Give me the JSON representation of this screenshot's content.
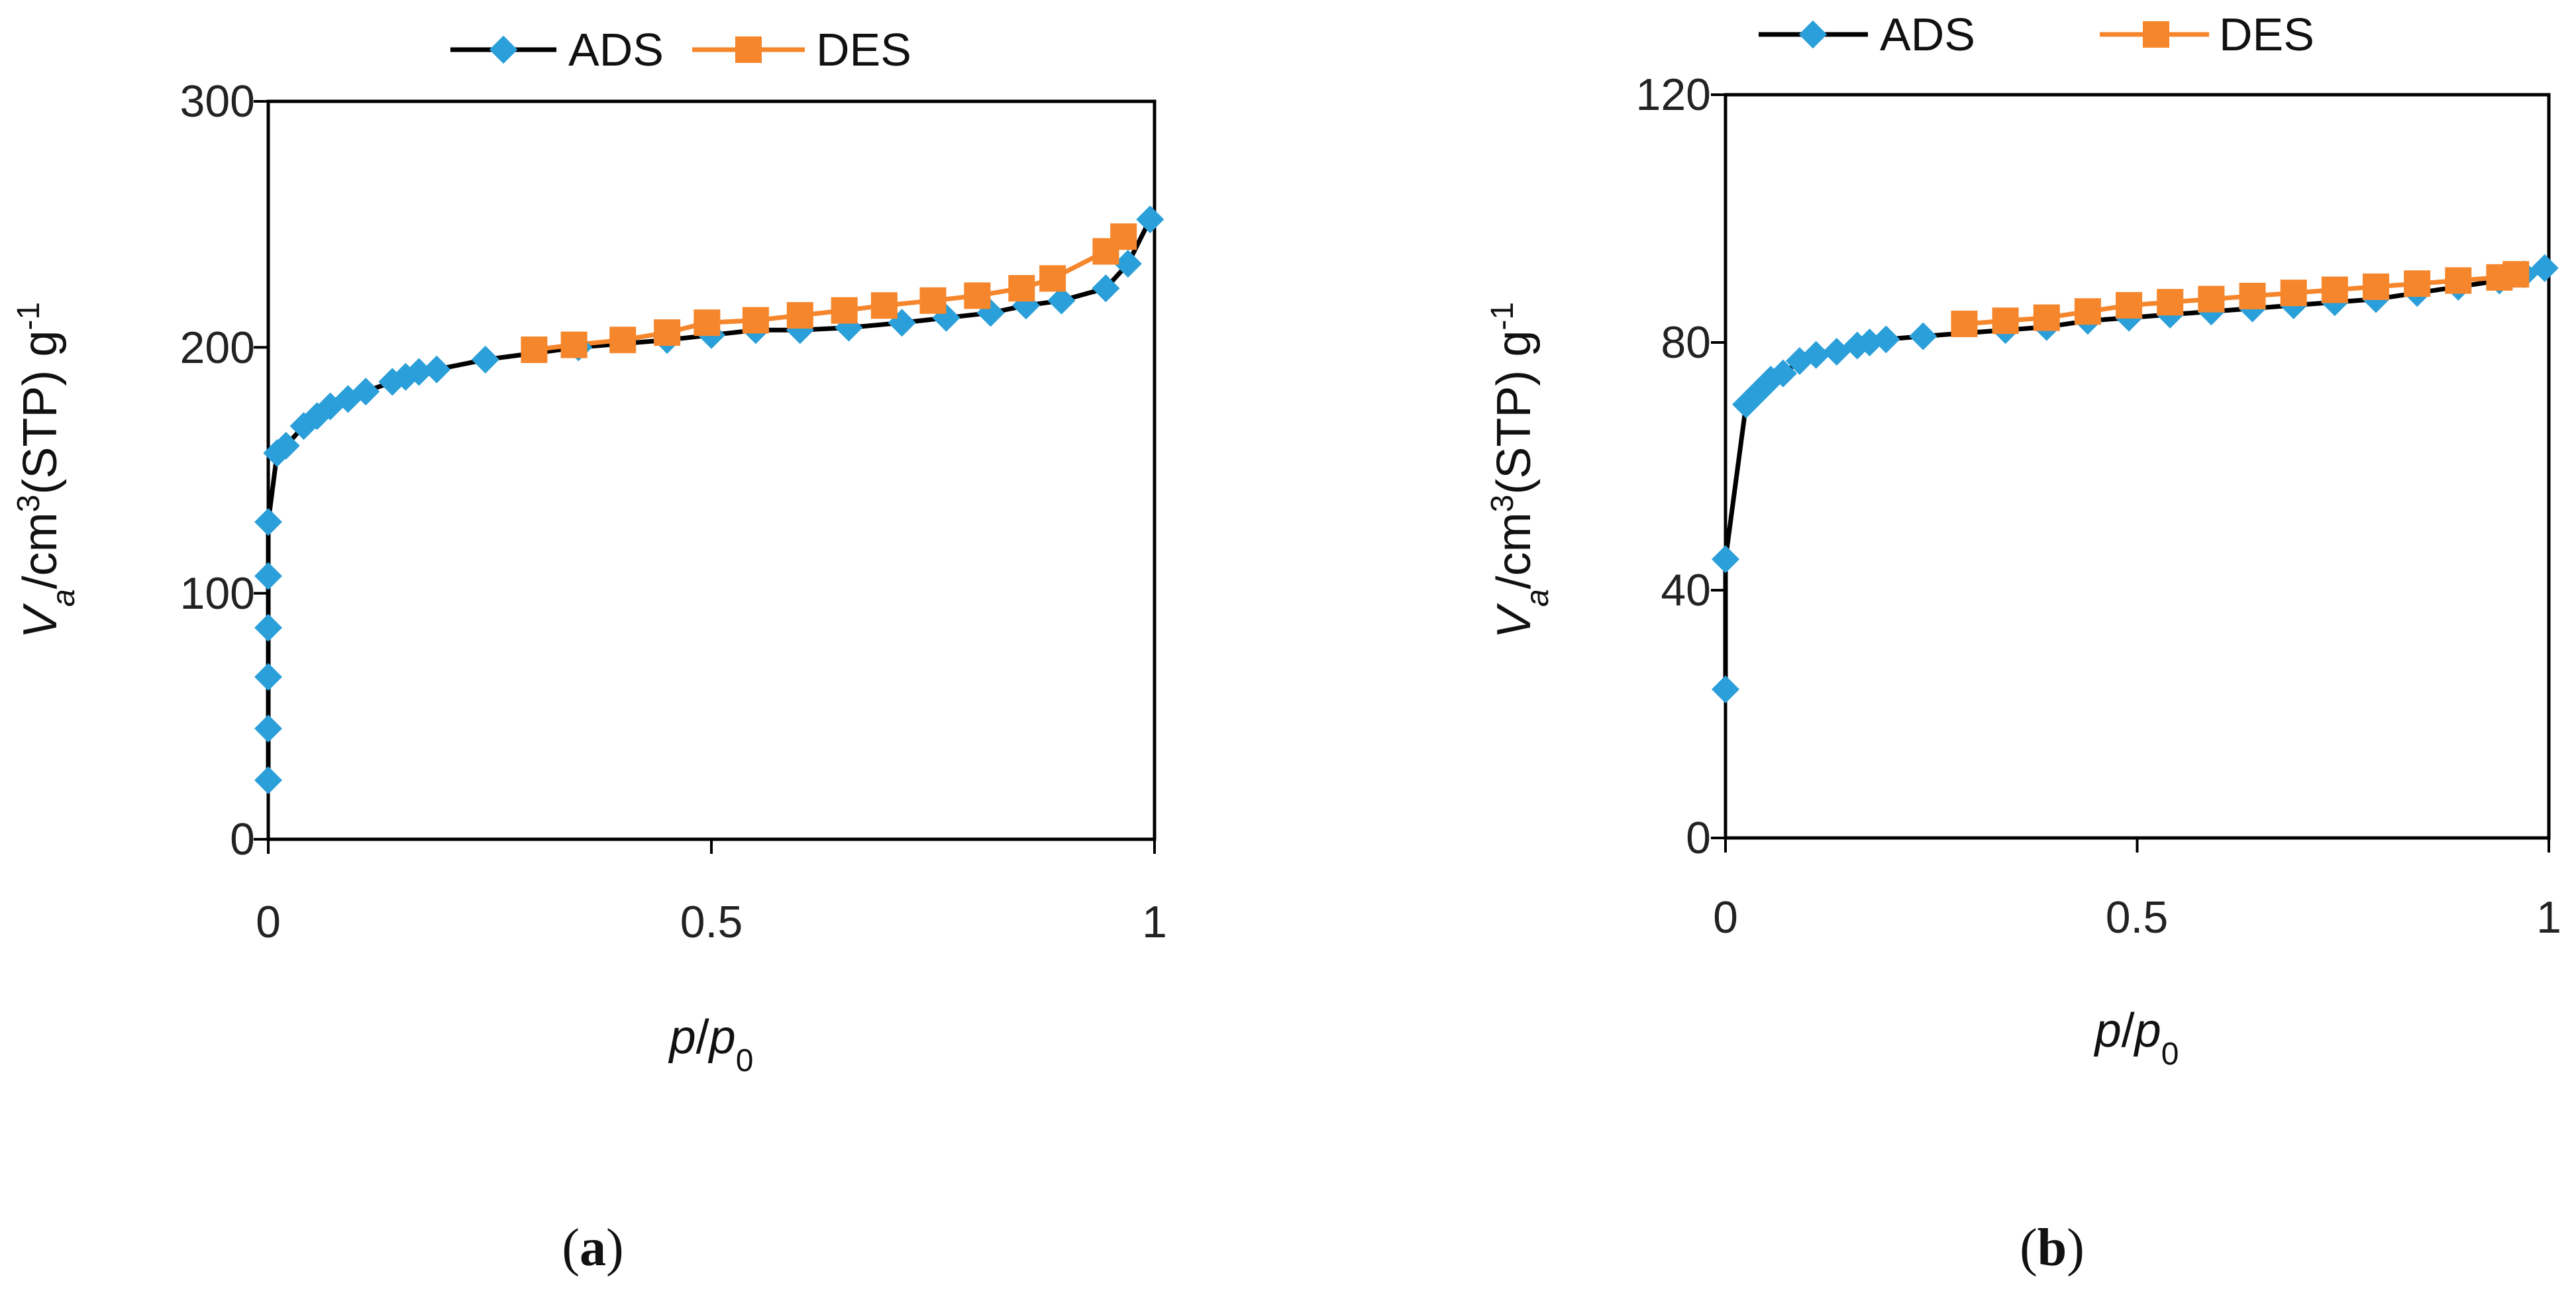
{
  "colors": {
    "ads": "#2b9fd9",
    "des": "#f5862b",
    "line": "#000000",
    "axis": "#000000"
  },
  "chart_data": [
    {
      "type": "scatter",
      "panel_label": "(a)",
      "panel_letter": "a",
      "xlabel": "p/p0",
      "ylabel": "Va/cm3(STP) g-1",
      "xlim": [
        0,
        1
      ],
      "ylim": [
        0,
        300
      ],
      "xticks": [
        0,
        0.5,
        1
      ],
      "xtick_labels": [
        "0",
        "0.5",
        "1"
      ],
      "yticks": [
        0,
        100,
        200,
        300
      ],
      "ytick_labels": [
        "0",
        "100",
        "200",
        "300"
      ],
      "legend_position": "top",
      "series": [
        {
          "name": "ADS",
          "marker": "diamond",
          "line_color": "#000000",
          "x": [
            0.0,
            0.0,
            0.0,
            0.0,
            0.0,
            0.0,
            0.01,
            0.02,
            0.04,
            0.055,
            0.07,
            0.09,
            0.11,
            0.14,
            0.155,
            0.17,
            0.19,
            0.245,
            0.35,
            0.45,
            0.5,
            0.55,
            0.6,
            0.655,
            0.715,
            0.765,
            0.815,
            0.855,
            0.895,
            0.945,
            0.97,
            0.995
          ],
          "y": [
            24,
            45,
            66,
            86,
            107,
            129,
            157,
            160,
            168,
            172,
            176,
            179,
            182,
            186,
            188,
            190,
            191,
            195,
            200,
            203,
            205,
            207,
            207,
            208,
            210,
            212,
            214,
            217,
            219,
            224,
            234,
            252
          ]
        },
        {
          "name": "DES",
          "marker": "square",
          "line_color": "#f5862b",
          "x": [
            0.3,
            0.345,
            0.4,
            0.45,
            0.495,
            0.55,
            0.6,
            0.65,
            0.695,
            0.75,
            0.8,
            0.85,
            0.885,
            0.945,
            0.965
          ],
          "y": [
            199,
            201,
            203,
            206,
            210,
            211,
            213,
            215,
            217,
            219,
            221,
            224,
            228,
            239,
            245
          ]
        }
      ]
    },
    {
      "type": "scatter",
      "panel_label": "(b)",
      "panel_letter": "b",
      "xlabel": "p/p0",
      "ylabel": "Va/cm3(STP) g-1",
      "xlim": [
        0,
        1
      ],
      "ylim": [
        0,
        120
      ],
      "xticks": [
        0,
        0.5,
        1
      ],
      "xtick_labels": [
        "0",
        "0.5",
        "1"
      ],
      "yticks": [
        0,
        40,
        80,
        120
      ],
      "ytick_labels": [
        "0",
        "40",
        "80",
        "120"
      ],
      "legend_position": "top",
      "series": [
        {
          "name": "ADS",
          "marker": "diamond",
          "line_color": "#000000",
          "x": [
            0.0,
            0.0,
            0.025,
            0.04,
            0.055,
            0.07,
            0.09,
            0.11,
            0.135,
            0.16,
            0.175,
            0.195,
            0.24,
            0.34,
            0.39,
            0.44,
            0.49,
            0.54,
            0.59,
            0.64,
            0.69,
            0.74,
            0.79,
            0.84,
            0.89,
            0.94,
            0.97,
            0.995
          ],
          "y": [
            24,
            45,
            70,
            72,
            74,
            75,
            77,
            78,
            78.5,
            79.5,
            80,
            80.5,
            81,
            82,
            82.5,
            83.5,
            84,
            84.5,
            85,
            85.5,
            86,
            86.5,
            87,
            88,
            89,
            90,
            91,
            92
          ]
        },
        {
          "name": "DES",
          "marker": "square",
          "line_color": "#f5862b",
          "x": [
            0.29,
            0.34,
            0.39,
            0.44,
            0.49,
            0.54,
            0.59,
            0.64,
            0.69,
            0.74,
            0.79,
            0.84,
            0.89,
            0.94,
            0.96
          ],
          "y": [
            83,
            83.5,
            84,
            85,
            86,
            86.5,
            87,
            87.5,
            88,
            88.5,
            89,
            89.5,
            90,
            90.5,
            91
          ]
        }
      ]
    }
  ]
}
